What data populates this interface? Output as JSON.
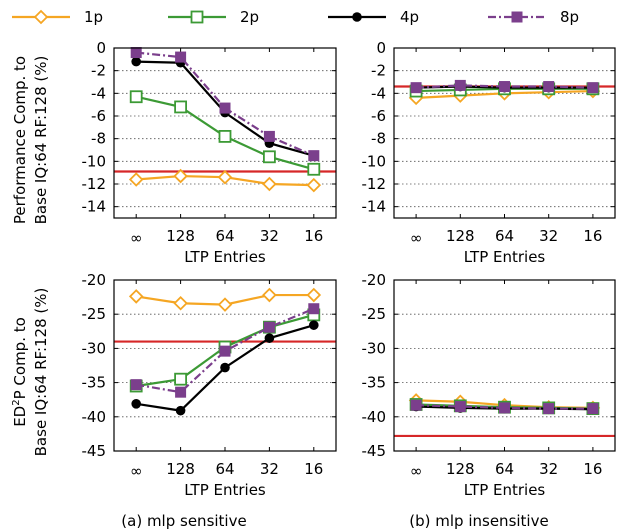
{
  "legend": [
    {
      "name": "1p",
      "color": "#f5a623",
      "marker": "diamond",
      "dash": ""
    },
    {
      "name": "2p",
      "color": "#3c9a35",
      "marker": "square-open",
      "dash": ""
    },
    {
      "name": "4p",
      "color": "#000000",
      "marker": "circle",
      "dash": ""
    },
    {
      "name": "8p",
      "color": "#7b3f8c",
      "marker": "square",
      "dash": "8,3,2,3"
    }
  ],
  "shared": {
    "xlabel": "LTP Entries",
    "categories": [
      "∞",
      "128",
      "64",
      "32",
      "16"
    ],
    "ylabel_top": [
      "Performance Comp. to",
      "Base IQ:64 RF:128 (%)"
    ],
    "ylabel_bottom_line1_pre": "ED",
    "ylabel_bottom_line1_sup": "2",
    "ylabel_bottom_line1_post": "P Comp. to",
    "ylabel_bottom_line2": "Base IQ:64 RF:128 (%)",
    "caption_left": "(a) mlp sensitive",
    "caption_right": "(b) mlp insensitive",
    "ref_color": "#d62728"
  },
  "chart_data": [
    {
      "type": "line",
      "panel": "top-left",
      "ylim": [
        -15,
        0
      ],
      "yticks": [
        0,
        -2,
        -4,
        -6,
        -8,
        -10,
        -12,
        -14
      ],
      "reference_line": -10.9,
      "series": [
        {
          "name": "1p",
          "values": [
            -11.6,
            -11.3,
            -11.4,
            -12.0,
            -12.1
          ]
        },
        {
          "name": "2p",
          "values": [
            -4.3,
            -5.2,
            -7.8,
            -9.6,
            -10.7
          ]
        },
        {
          "name": "4p",
          "values": [
            -1.2,
            -1.3,
            -5.7,
            -8.4,
            -9.5
          ]
        },
        {
          "name": "8p",
          "values": [
            -0.4,
            -0.8,
            -5.3,
            -7.8,
            -9.5
          ]
        }
      ]
    },
    {
      "type": "line",
      "panel": "top-right",
      "ylim": [
        -15,
        0
      ],
      "yticks": [
        0,
        -2,
        -4,
        -6,
        -8,
        -10,
        -12,
        -14
      ],
      "reference_line": -3.4,
      "series": [
        {
          "name": "1p",
          "values": [
            -4.4,
            -4.2,
            -4.0,
            -3.9,
            -3.8
          ]
        },
        {
          "name": "2p",
          "values": [
            -3.8,
            -3.7,
            -3.6,
            -3.6,
            -3.6
          ]
        },
        {
          "name": "4p",
          "values": [
            -3.5,
            -3.4,
            -3.5,
            -3.5,
            -3.5
          ]
        },
        {
          "name": "8p",
          "values": [
            -3.5,
            -3.3,
            -3.4,
            -3.4,
            -3.5
          ]
        }
      ]
    },
    {
      "type": "line",
      "panel": "bottom-left",
      "ylim": [
        -45,
        -20
      ],
      "yticks": [
        -20,
        -25,
        -30,
        -35,
        -40,
        -45
      ],
      "reference_line": -29.0,
      "series": [
        {
          "name": "1p",
          "values": [
            -22.4,
            -23.4,
            -23.6,
            -22.2,
            -22.2
          ]
        },
        {
          "name": "2p",
          "values": [
            -35.5,
            -34.5,
            -29.8,
            -26.9,
            -25.1
          ]
        },
        {
          "name": "4p",
          "values": [
            -38.1,
            -39.1,
            -32.8,
            -28.5,
            -26.6
          ]
        },
        {
          "name": "8p",
          "values": [
            -35.3,
            -36.4,
            -30.4,
            -26.9,
            -24.2
          ]
        }
      ]
    },
    {
      "type": "line",
      "panel": "bottom-right",
      "ylim": [
        -45,
        -20
      ],
      "yticks": [
        -20,
        -25,
        -30,
        -35,
        -40,
        -45
      ],
      "reference_line": -42.8,
      "series": [
        {
          "name": "1p",
          "values": [
            -37.6,
            -37.8,
            -38.3,
            -38.6,
            -38.7
          ]
        },
        {
          "name": "2p",
          "values": [
            -38.2,
            -38.4,
            -38.6,
            -38.7,
            -38.8
          ]
        },
        {
          "name": "4p",
          "values": [
            -38.5,
            -38.7,
            -38.8,
            -38.8,
            -38.9
          ]
        },
        {
          "name": "8p",
          "values": [
            -38.3,
            -38.5,
            -38.7,
            -38.8,
            -38.8
          ]
        }
      ]
    }
  ]
}
